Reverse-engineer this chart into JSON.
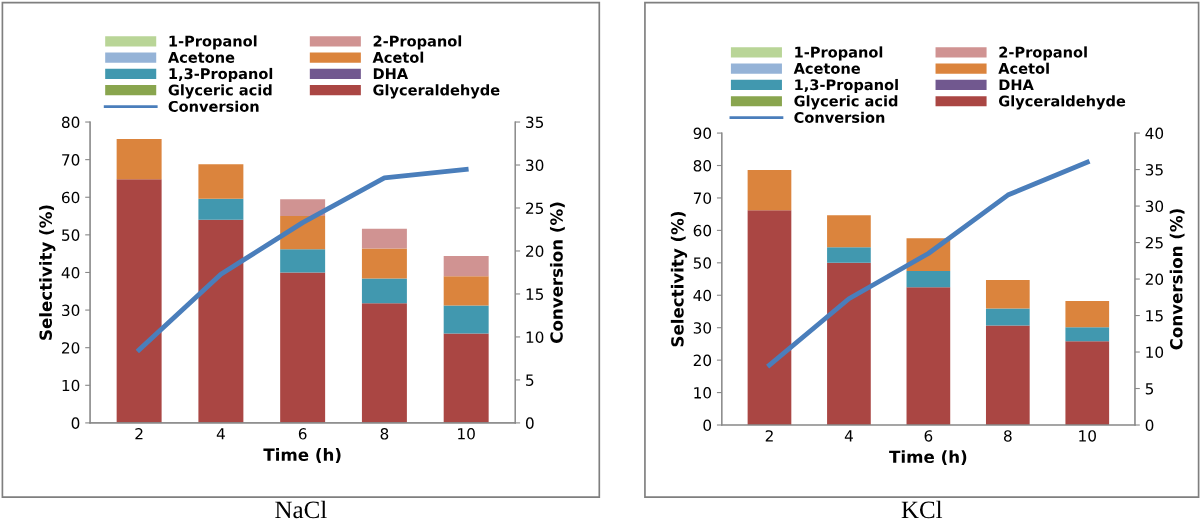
{
  "chart_data": [
    {
      "type": "bar",
      "stacked": true,
      "title": "NaCl",
      "xlabel": "Time (h)",
      "ylabel": "Selectivity (%)",
      "y2label": "Conversion (%)",
      "categories": [
        "2",
        "4",
        "6",
        "8",
        "10"
      ],
      "ylim": [
        0,
        80
      ],
      "yticks": [
        0,
        10,
        20,
        30,
        40,
        50,
        60,
        70,
        80
      ],
      "y2lim": [
        0,
        35
      ],
      "y2ticks": [
        0,
        5,
        10,
        15,
        20,
        25,
        30,
        35
      ],
      "legend": "top",
      "grid": false,
      "series": [
        {
          "name": "Glyceraldehyde",
          "color": "#aa4643",
          "values": [
            64.8,
            54,
            40,
            31.8,
            23.8
          ]
        },
        {
          "name": "Glyceric acid",
          "color": "#89a54e",
          "values": [
            0,
            0,
            0,
            0,
            0
          ]
        },
        {
          "name": "DHA",
          "color": "#71588f",
          "values": [
            0,
            0,
            0,
            0,
            0
          ]
        },
        {
          "name": "1,3-Propanol",
          "color": "#4198af",
          "values": [
            0,
            5.6,
            6.2,
            6.6,
            7.4
          ]
        },
        {
          "name": "Acetol",
          "color": "#db843d",
          "values": [
            10.7,
            9.2,
            8.8,
            8,
            7.8
          ]
        },
        {
          "name": "Acetone",
          "color": "#95b3d7",
          "values": [
            0,
            0,
            0,
            0,
            0
          ]
        },
        {
          "name": "2-Propanol",
          "color": "#d09392",
          "values": [
            0,
            0,
            4.5,
            5.2,
            5.4
          ]
        },
        {
          "name": "1-Propanol",
          "color": "#b9d597",
          "values": [
            0,
            0,
            0,
            0,
            0
          ]
        },
        {
          "name": "Conversion",
          "type": "line",
          "axis": "y2",
          "color": "#4a7ebb",
          "marker": "none",
          "values": [
            8.5,
            17.3,
            23.3,
            28.5,
            29.5
          ]
        }
      ]
    },
    {
      "type": "bar",
      "stacked": true,
      "title": "KCl",
      "xlabel": "Time (h)",
      "ylabel": "Selectivity (%)",
      "y2label": "Conversion (%)",
      "categories": [
        "2",
        "4",
        "6",
        "8",
        "10"
      ],
      "ylim": [
        0,
        90
      ],
      "yticks": [
        0,
        10,
        20,
        30,
        40,
        50,
        60,
        70,
        80,
        90
      ],
      "y2lim": [
        0,
        40
      ],
      "y2ticks": [
        0,
        5,
        10,
        15,
        20,
        25,
        30,
        35,
        40
      ],
      "legend": "top",
      "grid": false,
      "series": [
        {
          "name": "Glyceraldehyde",
          "color": "#aa4643",
          "values": [
            66.2,
            50,
            42.5,
            30.7,
            25.8
          ]
        },
        {
          "name": "Glyceric acid",
          "color": "#89a54e",
          "values": [
            0,
            0,
            0,
            0,
            0
          ]
        },
        {
          "name": "DHA",
          "color": "#71588f",
          "values": [
            0,
            0,
            0,
            0,
            0
          ]
        },
        {
          "name": "1,3-Propanol",
          "color": "#4198af",
          "values": [
            0,
            4.8,
            5,
            5.2,
            4.3
          ]
        },
        {
          "name": "Acetol",
          "color": "#db843d",
          "values": [
            12.4,
            9.9,
            10.1,
            8.8,
            8.1
          ]
        },
        {
          "name": "Acetone",
          "color": "#95b3d7",
          "values": [
            0,
            0,
            0,
            0,
            0
          ]
        },
        {
          "name": "2-Propanol",
          "color": "#d09392",
          "values": [
            0,
            0,
            0,
            0,
            0
          ]
        },
        {
          "name": "1-Propanol",
          "color": "#b9d597",
          "values": [
            0,
            0,
            0,
            0,
            0
          ]
        },
        {
          "name": "Conversion",
          "type": "line",
          "axis": "y2",
          "color": "#4a7ebb",
          "marker": "none",
          "values": [
            8.2,
            17.3,
            23.5,
            31.5,
            36
          ]
        }
      ]
    }
  ]
}
